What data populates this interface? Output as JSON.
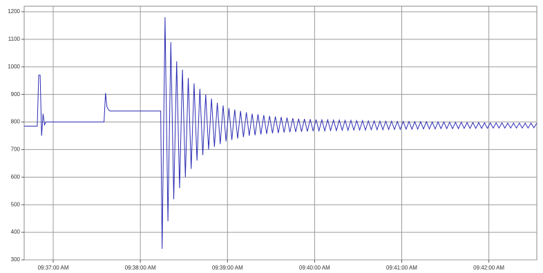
{
  "chart_data": {
    "type": "line",
    "x": [
      "09:36:40 AM",
      "09:36:49 AM",
      "09:36:50 AM",
      "09:36:51 AM",
      "09:36:52 AM",
      "09:36:53 AM",
      "09:36:54 AM",
      "09:36:55 AM",
      "09:37:35 AM",
      "09:37:36 AM",
      "09:37:37 AM",
      "09:37:38 AM",
      "09:37:39 AM",
      "09:38:13 AM",
      "09:38:14 AM",
      "09:38:15 AM",
      "09:38:17 AM",
      "09:38:19 AM",
      "09:38:21 AM",
      "09:38:23 AM",
      "09:38:25 AM",
      "09:38:27 AM",
      "09:38:29 AM",
      "09:38:31 AM",
      "09:38:33 AM",
      "09:38:35 AM",
      "09:38:37 AM",
      "09:38:39 AM",
      "09:38:41 AM",
      "09:38:43 AM",
      "09:38:45 AM",
      "09:38:47 AM",
      "09:38:49 AM",
      "09:38:51 AM",
      "09:38:53 AM",
      "09:38:55 AM",
      "09:38:57 AM",
      "09:38:59 AM",
      "09:39:01 AM",
      "09:39:03 AM",
      "09:39:05 AM",
      "09:39:07 AM",
      "09:39:09 AM",
      "09:39:11 AM",
      "09:39:13 AM",
      "09:39:15 AM",
      "09:39:17 AM",
      "09:39:19 AM",
      "09:39:21 AM",
      "09:39:23 AM",
      "09:39:25 AM",
      "09:39:27 AM",
      "09:39:29 AM",
      "09:39:31 AM",
      "09:39:33 AM",
      "09:39:35 AM",
      "09:39:37 AM",
      "09:39:39 AM",
      "09:39:41 AM",
      "09:39:43 AM",
      "09:39:45 AM",
      "09:39:47 AM",
      "09:39:49 AM",
      "09:39:51 AM",
      "09:39:53 AM",
      "09:39:55 AM",
      "09:39:57 AM",
      "09:39:59 AM",
      "09:40:01 AM",
      "09:40:03 AM",
      "09:40:05 AM",
      "09:40:07 AM",
      "09:40:09 AM",
      "09:40:11 AM",
      "09:40:13 AM",
      "09:40:15 AM",
      "09:40:17 AM",
      "09:40:19 AM",
      "09:40:21 AM",
      "09:40:23 AM",
      "09:40:25 AM",
      "09:40:27 AM",
      "09:40:29 AM",
      "09:40:31 AM",
      "09:40:33 AM",
      "09:40:35 AM",
      "09:40:37 AM",
      "09:40:39 AM",
      "09:40:41 AM",
      "09:40:43 AM",
      "09:40:45 AM",
      "09:40:47 AM",
      "09:40:49 AM",
      "09:40:51 AM",
      "09:40:53 AM",
      "09:40:55 AM",
      "09:40:57 AM",
      "09:40:59 AM",
      "09:41:01 AM",
      "09:41:03 AM",
      "09:41:05 AM",
      "09:41:07 AM",
      "09:41:09 AM",
      "09:41:11 AM",
      "09:41:13 AM",
      "09:41:15 AM",
      "09:41:17 AM",
      "09:41:19 AM",
      "09:41:21 AM",
      "09:41:23 AM",
      "09:41:25 AM",
      "09:41:27 AM",
      "09:41:29 AM",
      "09:41:31 AM",
      "09:41:33 AM",
      "09:41:35 AM",
      "09:41:37 AM",
      "09:41:39 AM",
      "09:41:41 AM",
      "09:41:43 AM",
      "09:41:45 AM",
      "09:41:47 AM",
      "09:41:49 AM",
      "09:41:51 AM",
      "09:41:53 AM",
      "09:41:55 AM",
      "09:41:57 AM",
      "09:41:59 AM",
      "09:42:01 AM",
      "09:42:03 AM",
      "09:42:05 AM",
      "09:42:07 AM",
      "09:42:09 AM",
      "09:42:11 AM",
      "09:42:13 AM",
      "09:42:15 AM",
      "09:42:17 AM",
      "09:42:19 AM",
      "09:42:21 AM",
      "09:42:23 AM",
      "09:42:25 AM",
      "09:42:27 AM",
      "09:42:29 AM",
      "09:42:31 AM",
      "09:42:33 AM"
    ],
    "series": [
      {
        "color": "#2a2ab4",
        "values": [
          785,
          785,
          970,
          970,
          750,
          830,
          790,
          800,
          800,
          905,
          855,
          845,
          840,
          840,
          840,
          340,
          1180,
          440,
          1090,
          520,
          1020,
          560,
          990,
          600,
          960,
          630,
          940,
          660,
          920,
          680,
          900,
          700,
          885,
          710,
          870,
          720,
          860,
          730,
          850,
          735,
          845,
          740,
          840,
          745,
          835,
          750,
          830,
          752,
          828,
          755,
          825,
          757,
          822,
          759,
          820,
          760,
          818,
          762,
          816,
          763,
          814,
          764,
          812,
          765,
          811,
          766,
          810,
          767,
          809,
          768,
          808,
          768,
          808,
          769,
          807,
          769,
          807,
          770,
          806,
          770,
          806,
          771,
          805,
          771,
          805,
          771,
          804,
          772,
          804,
          772,
          803,
          772,
          803,
          773,
          803,
          773,
          802,
          773,
          802,
          774,
          802,
          774,
          801,
          774,
          801,
          775,
          801,
          775,
          800,
          775,
          800,
          776,
          800,
          776,
          799,
          776,
          799,
          776,
          799,
          777,
          798,
          777,
          798,
          777,
          798,
          777,
          797,
          777,
          797,
          778,
          797,
          778,
          797,
          778,
          796,
          778,
          796,
          778,
          796,
          778,
          796,
          778,
          796,
          779,
          796
        ]
      }
    ],
    "xlim": [
      "09:36:40 AM",
      "09:42:33 AM"
    ],
    "xticks": [
      "09:37:00 AM",
      "09:38:00 AM",
      "09:39:00 AM",
      "09:40:00 AM",
      "09:41:00 AM",
      "09:42:00 AM"
    ],
    "ylim": [
      300,
      1220
    ],
    "yticks": [
      300,
      400,
      500,
      600,
      700,
      800,
      900,
      1000,
      1100,
      1200
    ],
    "grid": true
  }
}
